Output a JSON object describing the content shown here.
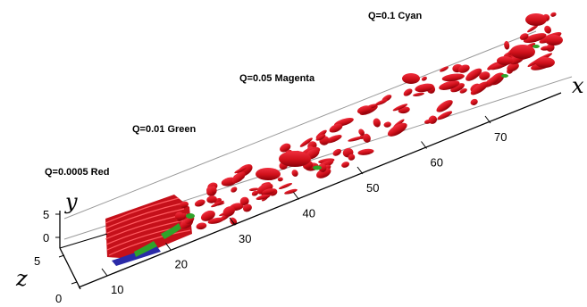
{
  "legend": [
    {
      "text": "Q=0.0005 Red"
    },
    {
      "text": "Q=0.01 Green"
    },
    {
      "text": "Q=0.05 Magenta"
    },
    {
      "text": "Q=0.1 Cyan"
    }
  ],
  "axes": {
    "x": {
      "name": "x",
      "ticks": [
        "10",
        "20",
        "30",
        "40",
        "50",
        "60",
        "70"
      ]
    },
    "y": {
      "name": "y",
      "ticks": [
        "5",
        "0"
      ]
    },
    "z": {
      "name": "z",
      "ticks": [
        "5",
        "0"
      ]
    }
  },
  "colors": {
    "iso_red": "#d0101a",
    "iso_red_dark": "#8a0008",
    "iso_green": "#2fa32a",
    "iso_blue": "#2a2aa8",
    "axis": "#000000",
    "edge": "#9a9a9a"
  }
}
